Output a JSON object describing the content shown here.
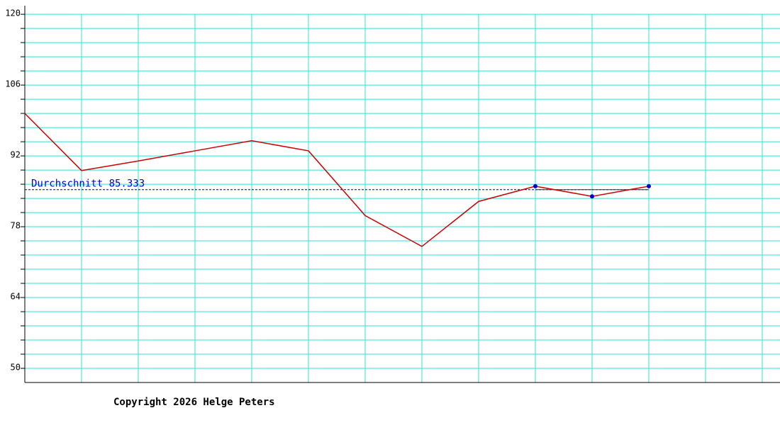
{
  "chart_data": {
    "type": "line",
    "categories": [
      null,
      null,
      null,
      null,
      null,
      null,
      null,
      null,
      null,
      null,
      null,
      null,
      null,
      null
    ],
    "series": [
      {
        "color": "#cc0000",
        "values": [
          100.4,
          89.1,
          91,
          93,
          95,
          93,
          80.2,
          74.1,
          83,
          86,
          84,
          86,
          null,
          null
        ]
      },
      {
        "color": "#0000cc",
        "marker": true,
        "values": [
          null,
          null,
          null,
          null,
          null,
          null,
          null,
          null,
          null,
          86,
          84,
          86,
          null,
          null
        ]
      }
    ],
    "average": {
      "label": "Durchschnitt 85.333",
      "value": 85.333,
      "color": "#000066"
    },
    "ylim": [
      47.2,
      121.7
    ],
    "yticks": [
      50,
      64,
      78,
      92,
      106,
      120
    ],
    "minor_yticks": [
      52.8,
      55.6,
      58.4,
      61.2,
      66.8,
      69.6,
      72.4,
      75.2,
      80.8,
      83.6,
      86.4,
      89.2,
      94.8,
      97.6,
      100.4,
      103.2,
      108.8,
      111.6,
      114.4,
      117.2
    ],
    "grid": true,
    "grid_color": "#33dddd",
    "footer": "Copyright 2026 Helge Peters"
  }
}
